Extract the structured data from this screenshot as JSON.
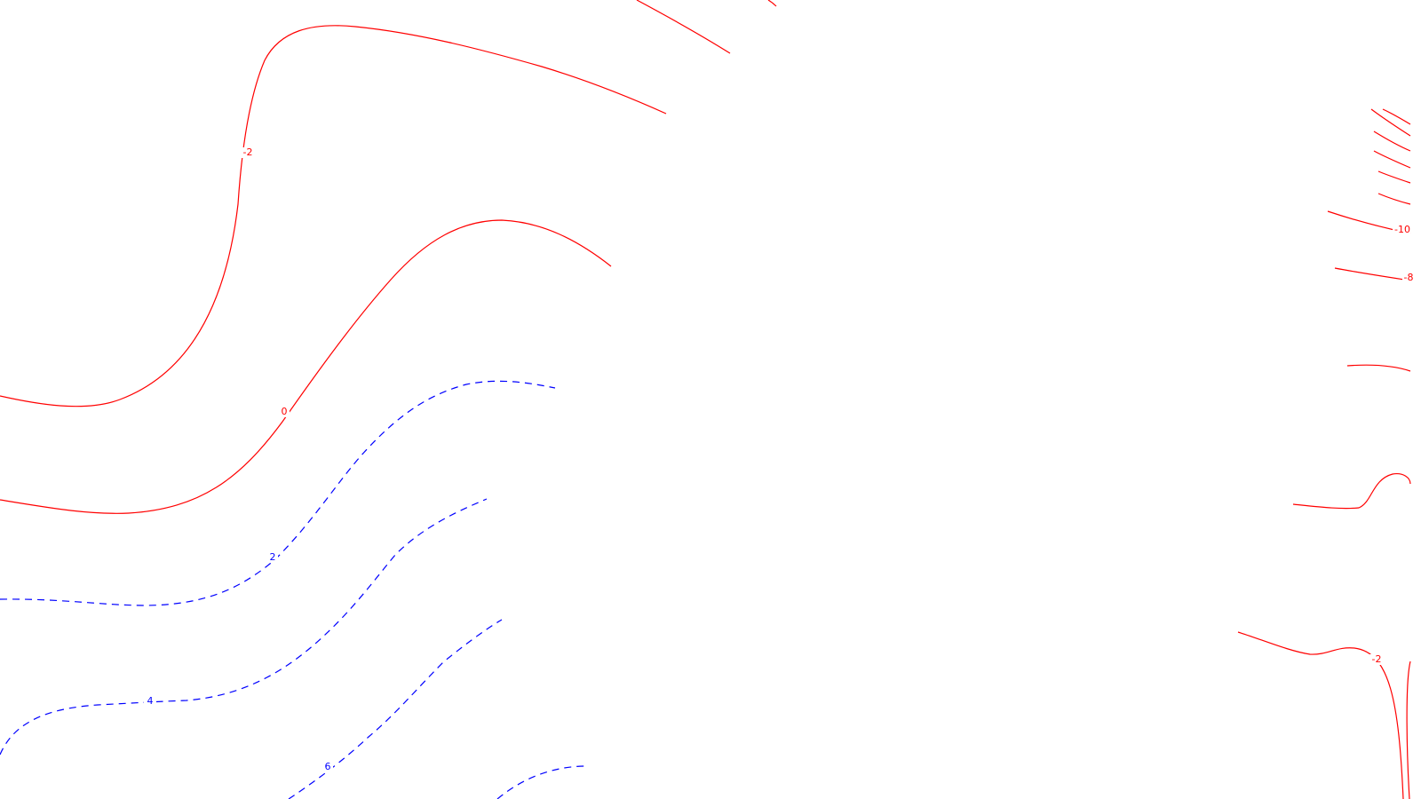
{
  "chart_data": {
    "type": "contour",
    "grid": false,
    "legend": "none",
    "colors": {
      "negative_and_zero": "#ff0000",
      "positive": "#0000ff"
    },
    "line_styles": {
      "negative_and_zero": "solid",
      "positive": "dashed"
    },
    "levels": [
      {
        "value": -10,
        "label": "-10",
        "color": "#ff0000",
        "style": "solid"
      },
      {
        "value": -8,
        "label": "-8",
        "color": "#ff0000",
        "style": "solid"
      },
      {
        "value": -2,
        "label": "-2",
        "color": "#ff0000",
        "style": "solid"
      },
      {
        "value": 0,
        "label": "0",
        "color": "#ff0000",
        "style": "solid"
      },
      {
        "value": 2,
        "label": "2",
        "color": "#0000ff",
        "style": "dashed"
      },
      {
        "value": 4,
        "label": "4",
        "color": "#0000ff",
        "style": "dashed"
      },
      {
        "value": 6,
        "label": "6",
        "color": "#0000ff",
        "style": "dashed"
      }
    ]
  }
}
